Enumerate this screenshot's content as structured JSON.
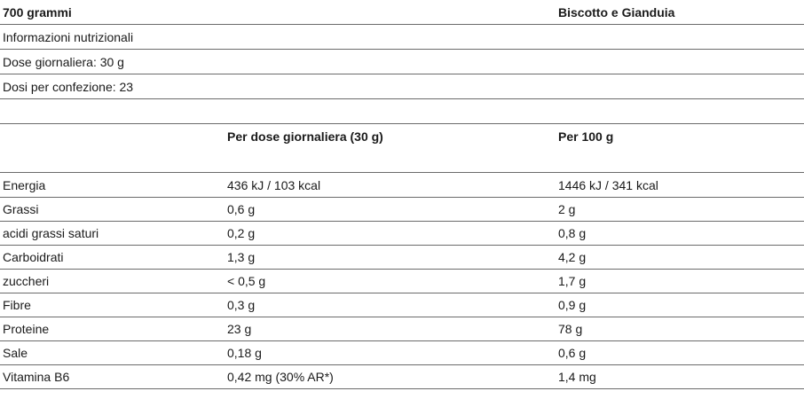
{
  "header": {
    "size": "700 grammi",
    "flavor": "Biscotto e Gianduia"
  },
  "info": [
    "Informazioni nutrizionali",
    "Dose giornaliera: 30 g",
    "Dosi per confezione: 23"
  ],
  "columns": {
    "per_dose": "Per dose giornaliera (30 g)",
    "per_100g": "Per 100 g"
  },
  "rows": [
    {
      "name": "Energia",
      "dose": "436 kJ / 103 kcal",
      "per100": "1446 kJ / 341 kcal"
    },
    {
      "name": "Grassi",
      "dose": "0,6 g",
      "per100": "2 g"
    },
    {
      "name": "acidi grassi saturi",
      "dose": "0,2 g",
      "per100": "0,8 g"
    },
    {
      "name": "Carboidrati",
      "dose": "1,3 g",
      "per100": "4,2 g"
    },
    {
      "name": "zuccheri",
      "dose": "< 0,5 g",
      "per100": "1,7 g"
    },
    {
      "name": "Fibre",
      "dose": "0,3 g",
      "per100": "0,9 g"
    },
    {
      "name": "Proteine",
      "dose": "23 g",
      "per100": "78 g"
    },
    {
      "name": "Sale",
      "dose": "0,18 g",
      "per100": "0,6 g"
    },
    {
      "name": "Vitamina B6",
      "dose": "0,42 mg (30% AR*)",
      "per100": "1,4 mg"
    }
  ]
}
